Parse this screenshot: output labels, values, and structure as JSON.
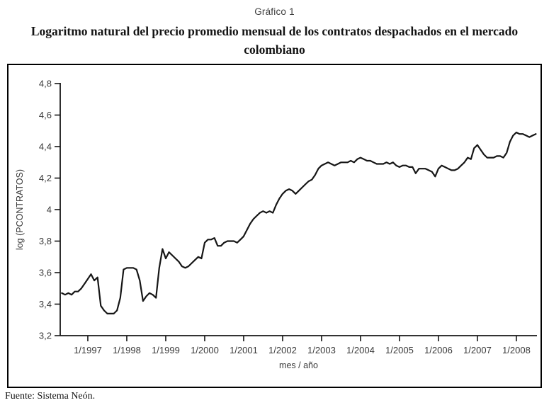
{
  "header": {
    "kicker": "Gráfico 1",
    "title_line1": "Logaritmo natural del precio promedio mensual de los contratos despachados en el mercado",
    "title_line2": "colombiano"
  },
  "footer": {
    "source": "Fuente: Sistema Neón."
  },
  "chart_data": {
    "type": "line",
    "title": "Logaritmo natural del precio promedio mensual de los contratos despachados en el mercado colombiano",
    "xlabel": "mes / año",
    "ylabel": "log (PCONTRATOS)",
    "ylim": [
      3.2,
      4.8
    ],
    "grid": false,
    "legend": "none",
    "line_color": "#161616",
    "axis_color": "#161616",
    "label_color": "#3a3a3a",
    "y_ticks": [
      {
        "value": 4.8,
        "label": "4,8"
      },
      {
        "value": 4.6,
        "label": "4,6"
      },
      {
        "value": 4.4,
        "label": "4,4"
      },
      {
        "value": 4.2,
        "label": "4,2"
      },
      {
        "value": 4.0,
        "label": "4"
      },
      {
        "value": 3.8,
        "label": "3,8"
      },
      {
        "value": 3.6,
        "label": "3,6"
      },
      {
        "value": 3.4,
        "label": "3,4"
      },
      {
        "value": 3.2,
        "label": "3,2"
      }
    ],
    "x_ticks": [
      "1/1997",
      "1/1998",
      "1/1999",
      "1/2000",
      "1/2001",
      "1/2002",
      "1/2003",
      "1/2004",
      "1/2005",
      "1/2006",
      "1/2007",
      "1/2008"
    ],
    "x": [
      "5/1996",
      "6/1996",
      "7/1996",
      "8/1996",
      "9/1996",
      "10/1996",
      "11/1996",
      "12/1996",
      "1/1997",
      "2/1997",
      "3/1997",
      "4/1997",
      "5/1997",
      "6/1997",
      "7/1997",
      "8/1997",
      "9/1997",
      "10/1997",
      "11/1997",
      "12/1997",
      "1/1998",
      "2/1998",
      "3/1998",
      "4/1998",
      "5/1998",
      "6/1998",
      "7/1998",
      "8/1998",
      "9/1998",
      "10/1998",
      "11/1998",
      "12/1998",
      "1/1999",
      "2/1999",
      "3/1999",
      "4/1999",
      "5/1999",
      "6/1999",
      "7/1999",
      "8/1999",
      "9/1999",
      "10/1999",
      "11/1999",
      "12/1999",
      "1/2000",
      "2/2000",
      "3/2000",
      "4/2000",
      "5/2000",
      "6/2000",
      "7/2000",
      "8/2000",
      "9/2000",
      "10/2000",
      "11/2000",
      "12/2000",
      "1/2001",
      "2/2001",
      "3/2001",
      "4/2001",
      "5/2001",
      "6/2001",
      "7/2001",
      "8/2001",
      "9/2001",
      "10/2001",
      "11/2001",
      "12/2001",
      "1/2002",
      "2/2002",
      "3/2002",
      "4/2002",
      "5/2002",
      "6/2002",
      "7/2002",
      "8/2002",
      "9/2002",
      "10/2002",
      "11/2002",
      "12/2002",
      "1/2003",
      "2/2003",
      "3/2003",
      "4/2003",
      "5/2003",
      "6/2003",
      "7/2003",
      "8/2003",
      "9/2003",
      "10/2003",
      "11/2003",
      "12/2003",
      "1/2004",
      "2/2004",
      "3/2004",
      "4/2004",
      "5/2004",
      "6/2004",
      "7/2004",
      "8/2004",
      "9/2004",
      "10/2004",
      "11/2004",
      "12/2004",
      "1/2005",
      "2/2005",
      "3/2005",
      "4/2005",
      "5/2005",
      "6/2005",
      "7/2005",
      "8/2005",
      "9/2005",
      "10/2005",
      "11/2005",
      "12/2005",
      "1/2006",
      "2/2006",
      "3/2006",
      "4/2006",
      "5/2006",
      "6/2006",
      "7/2006",
      "8/2006",
      "9/2006",
      "10/2006",
      "11/2006",
      "12/2006",
      "1/2007",
      "2/2007",
      "3/2007",
      "4/2007",
      "5/2007",
      "6/2007",
      "7/2007",
      "8/2007",
      "9/2007",
      "10/2007",
      "11/2007",
      "12/2007",
      "1/2008",
      "2/2008",
      "3/2008",
      "4/2008",
      "5/2008",
      "6/2008",
      "7/2008"
    ],
    "y": [
      3.47,
      3.46,
      3.47,
      3.46,
      3.48,
      3.48,
      3.5,
      3.53,
      3.56,
      3.59,
      3.55,
      3.57,
      3.39,
      3.36,
      3.34,
      3.34,
      3.34,
      3.36,
      3.44,
      3.62,
      3.63,
      3.63,
      3.63,
      3.62,
      3.55,
      3.42,
      3.45,
      3.47,
      3.46,
      3.44,
      3.63,
      3.75,
      3.69,
      3.73,
      3.71,
      3.69,
      3.67,
      3.64,
      3.63,
      3.64,
      3.66,
      3.68,
      3.7,
      3.69,
      3.79,
      3.81,
      3.81,
      3.82,
      3.77,
      3.77,
      3.79,
      3.8,
      3.8,
      3.8,
      3.79,
      3.81,
      3.83,
      3.87,
      3.91,
      3.94,
      3.96,
      3.98,
      3.99,
      3.98,
      3.99,
      3.98,
      4.03,
      4.07,
      4.1,
      4.12,
      4.13,
      4.12,
      4.1,
      4.12,
      4.14,
      4.16,
      4.18,
      4.19,
      4.22,
      4.26,
      4.28,
      4.29,
      4.3,
      4.29,
      4.28,
      4.29,
      4.3,
      4.3,
      4.3,
      4.31,
      4.3,
      4.32,
      4.33,
      4.32,
      4.31,
      4.31,
      4.3,
      4.29,
      4.29,
      4.29,
      4.3,
      4.29,
      4.3,
      4.28,
      4.27,
      4.28,
      4.28,
      4.27,
      4.27,
      4.23,
      4.26,
      4.26,
      4.26,
      4.25,
      4.24,
      4.21,
      4.26,
      4.28,
      4.27,
      4.26,
      4.25,
      4.25,
      4.26,
      4.28,
      4.3,
      4.33,
      4.32,
      4.39,
      4.41,
      4.38,
      4.35,
      4.33,
      4.33,
      4.33,
      4.34,
      4.34,
      4.33,
      4.36,
      4.43,
      4.47,
      4.49,
      4.48,
      4.48,
      4.47,
      4.46,
      4.47,
      4.48
    ]
  }
}
